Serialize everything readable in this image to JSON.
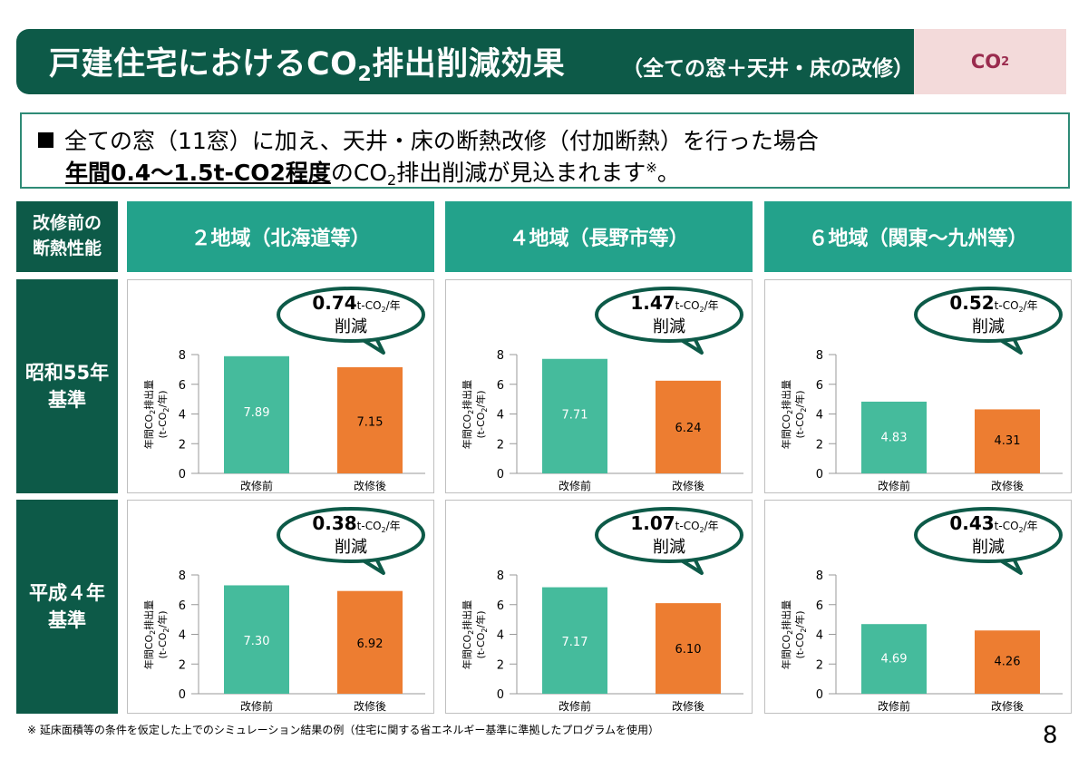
{
  "header": {
    "title_a": "戸建住宅におけるCO",
    "title_sub": "2",
    "title_b": "排出削減効果",
    "subtitle": "（全ての窓＋天井・床の改修）",
    "tag_a": "CO",
    "tag_sub": "2"
  },
  "summary": {
    "line1": "全ての窓（11窓）に加え、天井・床の断熱改修（付加断熱）を行った場合",
    "line2_bold": "年間0.4～1.5t-CO2程度",
    "line2_a": "のCO",
    "line2_sub": "2",
    "line2_b": "排出削減が見込まれます",
    "line2_sup": "※",
    "line2_end": "。"
  },
  "table": {
    "corner_label": "改修前の\n断熱性能",
    "columns": [
      "２地域（北海道等）",
      "４地域（長野市等）",
      "６地域（関東～九州等）"
    ],
    "rows": [
      "昭和55年\n基準",
      "平成４年\n基準"
    ]
  },
  "chart_labels": {
    "ylabel_a": "年間CO",
    "ylabel_sub": "2",
    "ylabel_b": "排出量",
    "ylabel2_a": "(t-CO",
    "ylabel2_sub": "2",
    "ylabel2_b": "/年)",
    "bubble_unit_a": "t-CO",
    "bubble_unit_sub": "2",
    "bubble_unit_b": "/年",
    "bubble_word": "削減"
  },
  "colors": {
    "before": "#45bb9c",
    "after": "#ed7d31",
    "bubble_border": "#0d5a48"
  },
  "chart_data": [
    {
      "type": "bar",
      "region": "２地域（北海道等）",
      "standard": "昭和55年基準",
      "categories": [
        "改修前",
        "改修後"
      ],
      "values": [
        7.89,
        7.15
      ],
      "value_labels": [
        "7.89",
        "7.15"
      ],
      "reduction": "0.74",
      "ylim": [
        0,
        8
      ],
      "yticks": [
        0,
        2,
        4,
        6,
        8
      ]
    },
    {
      "type": "bar",
      "region": "４地域（長野市等）",
      "standard": "昭和55年基準",
      "categories": [
        "改修前",
        "改修後"
      ],
      "values": [
        7.71,
        6.24
      ],
      "value_labels": [
        "7.71",
        "6.24"
      ],
      "reduction": "1.47",
      "ylim": [
        0,
        8
      ],
      "yticks": [
        0,
        2,
        4,
        6,
        8
      ]
    },
    {
      "type": "bar",
      "region": "６地域（関東～九州等）",
      "standard": "昭和55年基準",
      "categories": [
        "改修前",
        "改修後"
      ],
      "values": [
        4.83,
        4.31
      ],
      "value_labels": [
        "4.83",
        "4.31"
      ],
      "reduction": "0.52",
      "ylim": [
        0,
        8
      ],
      "yticks": [
        0,
        2,
        4,
        6,
        8
      ]
    },
    {
      "type": "bar",
      "region": "２地域（北海道等）",
      "standard": "平成４年基準",
      "categories": [
        "改修前",
        "改修後"
      ],
      "values": [
        7.3,
        6.92
      ],
      "value_labels": [
        "7.30",
        "6.92"
      ],
      "reduction": "0.38",
      "ylim": [
        0,
        8
      ],
      "yticks": [
        0,
        2,
        4,
        6,
        8
      ]
    },
    {
      "type": "bar",
      "region": "４地域（長野市等）",
      "standard": "平成４年基準",
      "categories": [
        "改修前",
        "改修後"
      ],
      "values": [
        7.17,
        6.1
      ],
      "value_labels": [
        "7.17",
        "6.10"
      ],
      "reduction": "1.07",
      "ylim": [
        0,
        8
      ],
      "yticks": [
        0,
        2,
        4,
        6,
        8
      ]
    },
    {
      "type": "bar",
      "region": "６地域（関東～九州等）",
      "standard": "平成４年基準",
      "categories": [
        "改修前",
        "改修後"
      ],
      "values": [
        4.69,
        4.26
      ],
      "value_labels": [
        "4.69",
        "4.26"
      ],
      "reduction": "0.43",
      "ylim": [
        0,
        8
      ],
      "yticks": [
        0,
        2,
        4,
        6,
        8
      ]
    }
  ],
  "footnote": "※ 延床面積等の条件を仮定した上でのシミュレーション結果の例（住宅に関する省エネルギー基準に準拠したプログラムを使用）",
  "page_number": "8"
}
